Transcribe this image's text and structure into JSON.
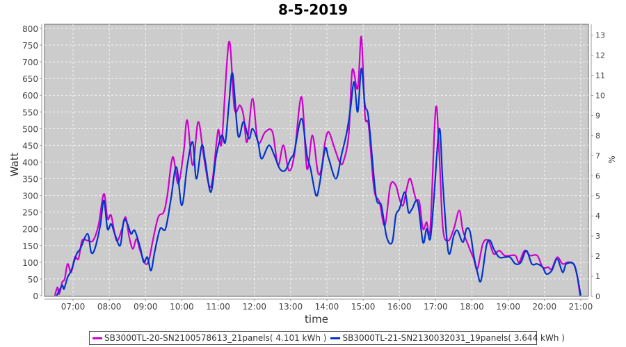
{
  "chart_data": {
    "type": "line",
    "title": "8-5-2019",
    "xlabel": "time",
    "ylabel": "Watt",
    "y2label": "%",
    "xlim": [
      6.2,
      21.1
    ],
    "ylim": [
      0,
      810
    ],
    "y2lim": [
      0,
      13.5
    ],
    "grid": true,
    "legend_position": "bottom",
    "x_ticks": [
      7,
      8,
      9,
      10,
      11,
      12,
      13,
      14,
      15,
      16,
      17,
      18,
      19,
      20,
      21
    ],
    "x_tick_labels": [
      "07:00",
      "08:00",
      "09:00",
      "10:00",
      "11:00",
      "12:00",
      "13:00",
      "14:00",
      "15:00",
      "16:00",
      "17:00",
      "18:00",
      "19:00",
      "20:00",
      "21:00"
    ],
    "y_ticks": [
      0,
      50,
      100,
      150,
      200,
      250,
      300,
      350,
      400,
      450,
      500,
      550,
      600,
      650,
      700,
      750,
      800
    ],
    "y2_ticks": [
      0,
      1,
      2,
      3,
      4,
      5,
      6,
      7,
      8,
      9,
      10,
      11,
      12,
      13
    ],
    "series": [
      {
        "name": "SB3000TL-20-SN2100578613_21panels( 4.101 kWh )",
        "color": "#cc00cc",
        "x": [
          6.5,
          6.57,
          6.62,
          6.7,
          6.77,
          6.85,
          6.95,
          7.05,
          7.15,
          7.25,
          7.4,
          7.55,
          7.7,
          7.85,
          7.95,
          8.05,
          8.2,
          8.35,
          8.45,
          8.55,
          8.65,
          8.75,
          8.85,
          9.0,
          9.1,
          9.2,
          9.35,
          9.5,
          9.6,
          9.75,
          9.9,
          10.05,
          10.15,
          10.3,
          10.45,
          10.6,
          10.75,
          10.85,
          11.0,
          11.1,
          11.3,
          11.45,
          11.6,
          11.7,
          11.8,
          11.95,
          12.1,
          12.3,
          12.5,
          12.65,
          12.8,
          12.95,
          13.1,
          13.3,
          13.45,
          13.6,
          13.75,
          13.85,
          13.95,
          14.05,
          14.2,
          14.35,
          14.45,
          14.6,
          14.7,
          14.85,
          14.95,
          15.05,
          15.15,
          15.3,
          15.45,
          15.6,
          15.75,
          15.9,
          16.0,
          16.1,
          16.2,
          16.3,
          16.45,
          16.55,
          16.65,
          16.75,
          16.85,
          17.0,
          17.1,
          17.2,
          17.35,
          17.5,
          17.65,
          17.75,
          17.9,
          18.05,
          18.15,
          18.3,
          18.45,
          18.6,
          18.75,
          18.9,
          19.05,
          19.2,
          19.3,
          19.45,
          19.6,
          19.8,
          19.95,
          20.1,
          20.2,
          20.35,
          20.5,
          20.65,
          20.8,
          20.9,
          20.98
        ],
        "values": [
          0,
          25,
          5,
          40,
          50,
          95,
          70,
          115,
          110,
          165,
          165,
          165,
          210,
          305,
          230,
          240,
          165,
          200,
          235,
          175,
          140,
          170,
          135,
          95,
          110,
          165,
          235,
          250,
          300,
          415,
          335,
          430,
          525,
          390,
          520,
          420,
          330,
          350,
          495,
          460,
          760,
          560,
          570,
          540,
          460,
          590,
          460,
          490,
          490,
          390,
          450,
          375,
          420,
          595,
          380,
          480,
          370,
          380,
          460,
          490,
          445,
          400,
          400,
          480,
          675,
          620,
          775,
          540,
          510,
          320,
          280,
          210,
          330,
          330,
          290,
          270,
          320,
          350,
          290,
          280,
          200,
          220,
          200,
          560,
          420,
          200,
          165,
          200,
          255,
          195,
          150,
          110,
          80,
          155,
          165,
          125,
          135,
          120,
          120,
          120,
          100,
          135,
          120,
          120,
          85,
          85,
          80,
          115,
          95,
          100,
          95,
          60,
          0
        ]
      },
      {
        "name": "SB3000TL-21-SN2130032031_19panels( 3.644 kWh )",
        "color": "#0033cc",
        "x": [
          6.55,
          6.7,
          6.75,
          6.85,
          6.95,
          7.1,
          7.2,
          7.4,
          7.5,
          7.6,
          7.75,
          7.85,
          7.95,
          8.05,
          8.15,
          8.3,
          8.4,
          8.5,
          8.6,
          8.7,
          8.85,
          8.95,
          9.05,
          9.15,
          9.25,
          9.4,
          9.55,
          9.7,
          9.85,
          10.0,
          10.15,
          10.3,
          10.4,
          10.55,
          10.65,
          10.8,
          10.95,
          11.1,
          11.2,
          11.3,
          11.4,
          11.55,
          11.7,
          11.85,
          11.95,
          12.1,
          12.2,
          12.4,
          12.55,
          12.7,
          12.85,
          13.0,
          13.1,
          13.3,
          13.45,
          13.55,
          13.7,
          13.8,
          13.95,
          14.05,
          14.25,
          14.4,
          14.55,
          14.65,
          14.75,
          14.85,
          14.95,
          15.05,
          15.15,
          15.35,
          15.5,
          15.65,
          15.8,
          15.9,
          16.0,
          16.15,
          16.25,
          16.35,
          16.5,
          16.65,
          16.75,
          16.85,
          16.95,
          17.1,
          17.2,
          17.35,
          17.5,
          17.6,
          17.75,
          17.85,
          17.95,
          18.05,
          18.15,
          18.25,
          18.4,
          18.5,
          18.6,
          18.75,
          18.9,
          19.05,
          19.2,
          19.35,
          19.5,
          19.65,
          19.8,
          19.95,
          20.05,
          20.2,
          20.35,
          20.5,
          20.6,
          20.8,
          20.9,
          21.0
        ],
        "values": [
          0,
          30,
          20,
          55,
          75,
          125,
          140,
          185,
          130,
          140,
          210,
          285,
          200,
          215,
          185,
          150,
          225,
          215,
          185,
          195,
          145,
          100,
          115,
          75,
          130,
          200,
          200,
          290,
          385,
          270,
          390,
          460,
          350,
          450,
          400,
          310,
          420,
          480,
          460,
          575,
          665,
          480,
          520,
          470,
          500,
          460,
          410,
          450,
          420,
          380,
          375,
          410,
          430,
          530,
          420,
          380,
          300,
          335,
          440,
          410,
          350,
          420,
          490,
          560,
          640,
          550,
          680,
          570,
          530,
          300,
          270,
          175,
          160,
          240,
          260,
          310,
          250,
          260,
          280,
          160,
          200,
          170,
          290,
          500,
          330,
          130,
          180,
          195,
          160,
          200,
          190,
          120,
          70,
          45,
          150,
          165,
          140,
          115,
          115,
          115,
          95,
          100,
          135,
          95,
          95,
          85,
          65,
          75,
          110,
          70,
          95,
          95,
          60,
          0
        ]
      }
    ]
  }
}
